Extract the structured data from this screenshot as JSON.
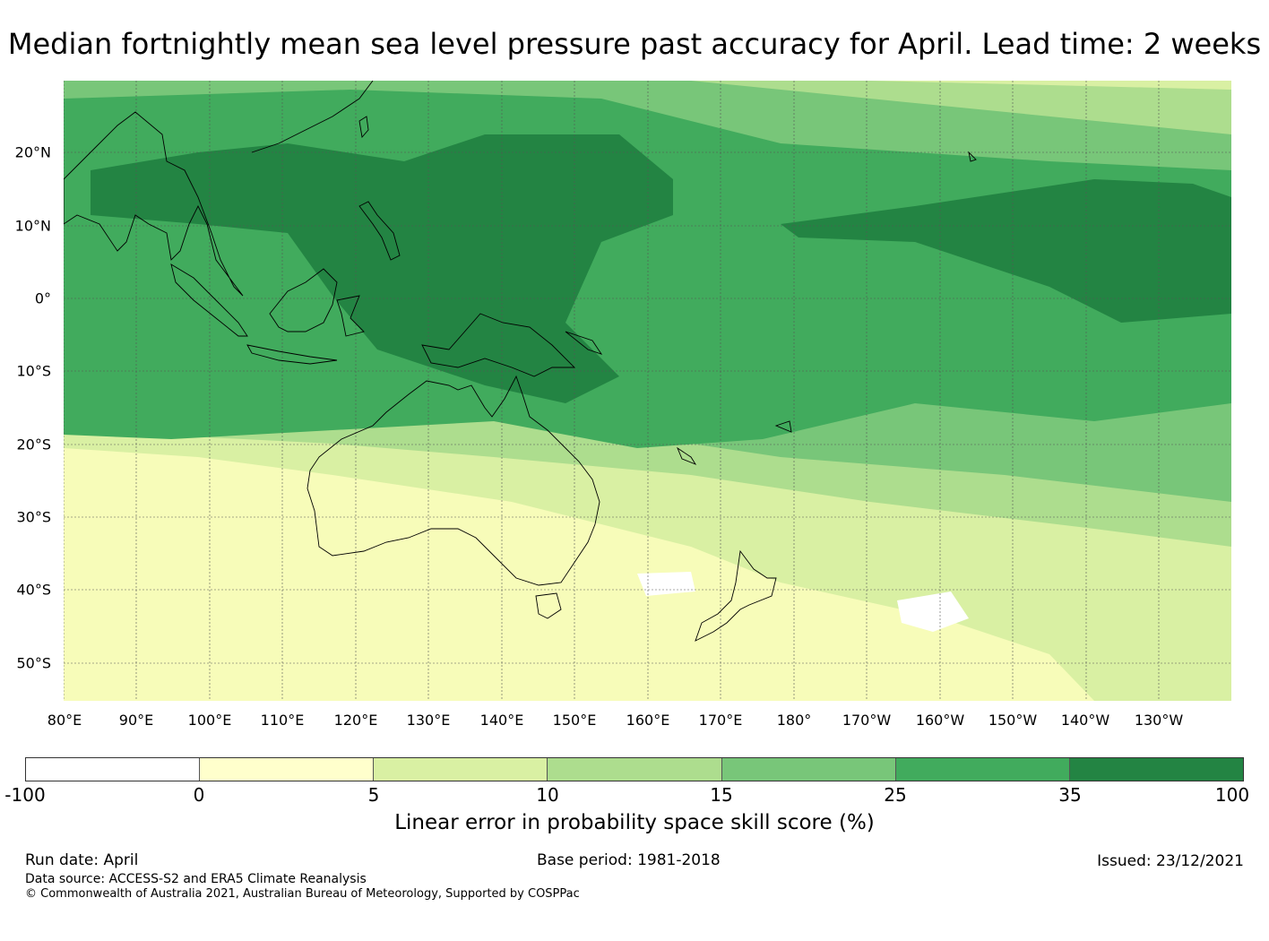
{
  "title": "Median fortnightly mean sea level pressure past accuracy for April. Lead time: 2 weeks",
  "map": {
    "lat_labels": [
      "20°N",
      "10°N",
      "0°",
      "10°S",
      "20°S",
      "30°S",
      "40°S",
      "50°S"
    ],
    "lon_labels": [
      "80°E",
      "90°E",
      "100°E",
      "110°E",
      "120°E",
      "130°E",
      "140°E",
      "150°E",
      "160°E",
      "170°E",
      "180°",
      "170°W",
      "160°W",
      "150°W",
      "140°W",
      "130°W"
    ],
    "extent": {
      "lon_min": 80,
      "lon_max": 240,
      "lat_min": -55,
      "lat_max": 30
    }
  },
  "colorbar": {
    "ticks": [
      "-100",
      "0",
      "5",
      "10",
      "15",
      "25",
      "35",
      "100"
    ],
    "colors": [
      "#ffffff",
      "#ffffcc",
      "#d9f0a3",
      "#addd8e",
      "#78c679",
      "#41ab5d",
      "#238443"
    ],
    "label": "Linear error in probability space skill score (%)"
  },
  "footer": {
    "run_date": "Run date: April",
    "base_period": "Base period: 1981-2018",
    "issued": "Issued: 23/12/2021",
    "data_source": "Data source: ACCESS-S2 and ERA5 Climate Reanalysis",
    "copyright": "© Commonwealth of Australia 2021, Australian Bureau of Meteorology, Supported by COSPPac"
  }
}
